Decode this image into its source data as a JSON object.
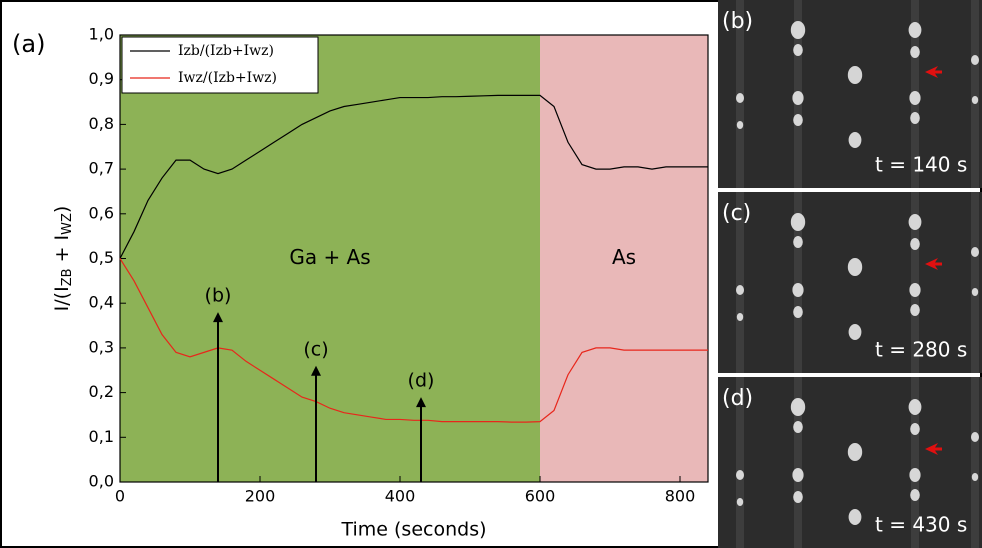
{
  "chart_data": {
    "type": "line",
    "panel_label": "(a)",
    "xlabel": "Time (seconds)",
    "ylabel_parts": [
      "I/(I",
      "ZB",
      " + I",
      "WZ",
      ")"
    ],
    "xlim": [
      0,
      840
    ],
    "xticks": [
      0,
      200,
      400,
      600,
      800
    ],
    "ylim": [
      0,
      1.0
    ],
    "yticks": [
      {
        "value": 0,
        "label": "0,0"
      },
      {
        "value": 0.1,
        "label": "0,1"
      },
      {
        "value": 0.2,
        "label": "0,2"
      },
      {
        "value": 0.3,
        "label": "0,3"
      },
      {
        "value": 0.4,
        "label": "0,4"
      },
      {
        "value": 0.5,
        "label": "0,5"
      },
      {
        "value": 0.6,
        "label": "0,6"
      },
      {
        "value": 0.7,
        "label": "0,7"
      },
      {
        "value": 0.8,
        "label": "0,8"
      },
      {
        "value": 0.9,
        "label": "0,9"
      },
      {
        "value": 1.0,
        "label": "1,0"
      }
    ],
    "regions": [
      {
        "label": "Ga + As",
        "start": 0,
        "end": 600,
        "color": "#8db256"
      },
      {
        "label": "As",
        "start": 600,
        "end": 840,
        "color": "#e9b8b8"
      }
    ],
    "x": [
      0,
      20,
      40,
      60,
      80,
      100,
      120,
      140,
      160,
      180,
      200,
      220,
      240,
      260,
      280,
      300,
      320,
      340,
      360,
      380,
      400,
      420,
      440,
      460,
      480,
      500,
      520,
      540,
      560,
      580,
      600,
      620,
      640,
      660,
      680,
      700,
      720,
      740,
      760,
      780,
      800,
      820,
      840
    ],
    "series": [
      {
        "name": "Izb/(Izb+Iwz)",
        "color": "#000000",
        "values": [
          0.5,
          0.56,
          0.63,
          0.68,
          0.72,
          0.72,
          0.7,
          0.69,
          0.7,
          0.72,
          0.74,
          0.76,
          0.78,
          0.8,
          0.815,
          0.83,
          0.84,
          0.845,
          0.85,
          0.855,
          0.86,
          0.86,
          0.86,
          0.862,
          0.862,
          0.863,
          0.864,
          0.865,
          0.865,
          0.865,
          0.865,
          0.84,
          0.76,
          0.71,
          0.7,
          0.7,
          0.705,
          0.705,
          0.7,
          0.705,
          0.705,
          0.705,
          0.705
        ]
      },
      {
        "name": "Iwz/(Izb+Iwz)",
        "color": "#e8261b",
        "values": [
          0.5,
          0.45,
          0.39,
          0.33,
          0.29,
          0.28,
          0.29,
          0.3,
          0.295,
          0.27,
          0.25,
          0.23,
          0.21,
          0.19,
          0.18,
          0.165,
          0.155,
          0.15,
          0.145,
          0.14,
          0.14,
          0.138,
          0.138,
          0.135,
          0.135,
          0.135,
          0.135,
          0.135,
          0.134,
          0.134,
          0.135,
          0.16,
          0.24,
          0.29,
          0.3,
          0.3,
          0.295,
          0.295,
          0.295,
          0.295,
          0.295,
          0.295,
          0.295
        ]
      }
    ],
    "annotations": [
      {
        "label": "(b)",
        "x": 140,
        "y": 0.38
      },
      {
        "label": "(c)",
        "x": 280,
        "y": 0.26
      },
      {
        "label": "(d)",
        "x": 430,
        "y": 0.19
      }
    ]
  },
  "panels": [
    {
      "label": "(b)",
      "time": "t = 140 s"
    },
    {
      "label": "(c)",
      "time": "t = 280 s"
    },
    {
      "label": "(d)",
      "time": "t = 430 s"
    }
  ]
}
